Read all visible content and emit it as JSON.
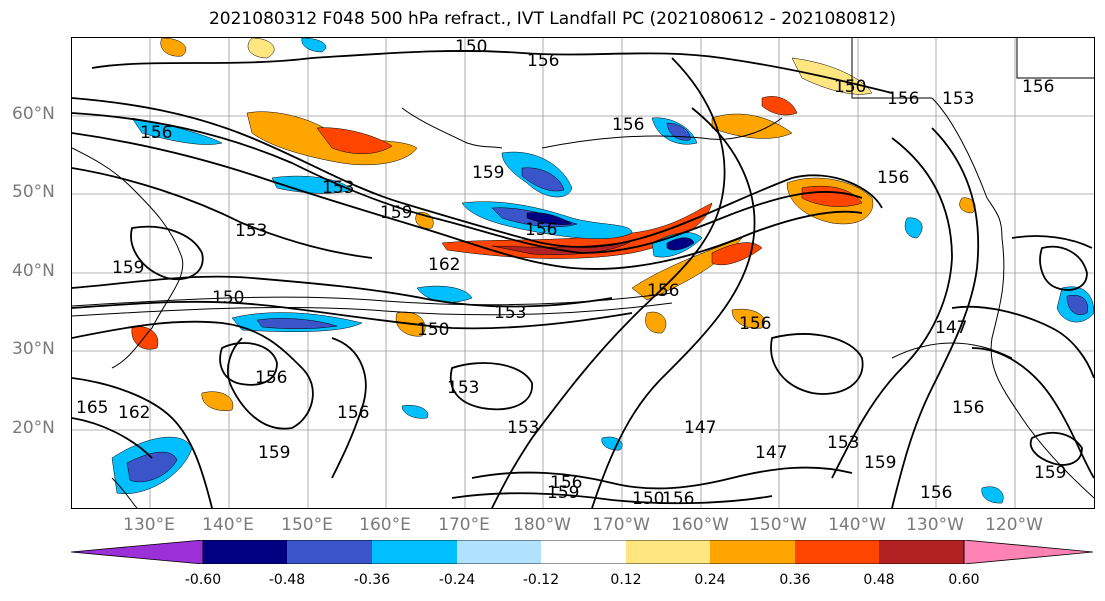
{
  "title": "2021080312 F048 500 hPa refract., IVT Landfall PC (2021080612 - 2021080812)",
  "lat_labels": [
    "60°N",
    "50°N",
    "40°N",
    "30°N",
    "20°N"
  ],
  "lon_labels": [
    "130°E",
    "140°E",
    "150°E",
    "160°E",
    "170°E",
    "180°W",
    "170°W",
    "160°W",
    "150°W",
    "140°W",
    "130°W",
    "120°W"
  ],
  "contour_labels": [
    "150",
    "156",
    "156",
    "150",
    "156",
    "153",
    "156",
    "156",
    "156",
    "159",
    "153",
    "159",
    "153",
    "156",
    "159",
    "162",
    "156",
    "153",
    "150",
    "156",
    "150",
    "147",
    "156",
    "156",
    "153",
    "156",
    "147",
    "147",
    "153",
    "159",
    "156",
    "156",
    "153",
    "159",
    "159",
    "156",
    "150",
    "159",
    "165",
    "162"
  ],
  "colorbar": {
    "tick_labels": [
      "-0.60",
      "-0.48",
      "-0.36",
      "-0.24",
      "-0.12",
      "0.12",
      "0.24",
      "0.36",
      "0.48",
      "0.60"
    ],
    "colors": [
      "#9b30d9",
      "#000080",
      "#3a54c9",
      "#00bfff",
      "#b0e2ff",
      "#ffffff",
      "#ffe680",
      "#ffa500",
      "#ff4500",
      "#b22222",
      "#ff82b4"
    ]
  },
  "colors": {
    "neg_strong": "#000080",
    "neg_mid": "#3a54c9",
    "neg_light": "#00bfff",
    "neg_pale": "#b0e2ff",
    "pos_pale": "#ffe680",
    "pos_mid": "#ffa500",
    "pos_strong": "#ff4500",
    "pos_dark": "#b22222"
  }
}
